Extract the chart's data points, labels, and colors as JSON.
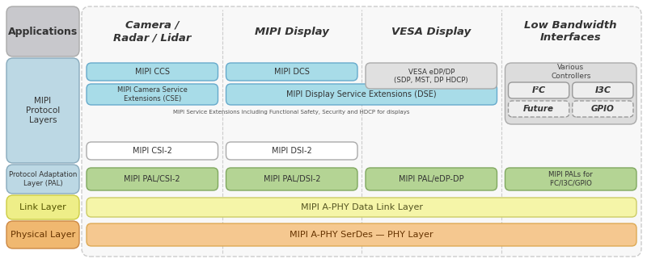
{
  "fig_w": 8.0,
  "fig_h": 3.26,
  "dpi": 100,
  "bg": "#ffffff",
  "col_headers": [
    "Camera /\nRadar / Lidar",
    "MIPI Display",
    "VESA Display",
    "Low Bandwidth\nInterfaces"
  ],
  "app_bg": "#c8c8cc",
  "proto_bg": "#c0dfe8",
  "pal_bg": "#c0dfe8",
  "link_bg": "#f0f09a",
  "phy_bg": "#f5c88a",
  "cyan_box": "#a8dce8",
  "white_box": "#ffffff",
  "gray_box": "#dcdcdc",
  "green_box": "#b8d898",
  "link_bar": "#f5f5b0",
  "phy_bar": "#f5d0a0",
  "note_text": "MIPI Service Extensions including Functional Safety, Security and HDCP for displays"
}
